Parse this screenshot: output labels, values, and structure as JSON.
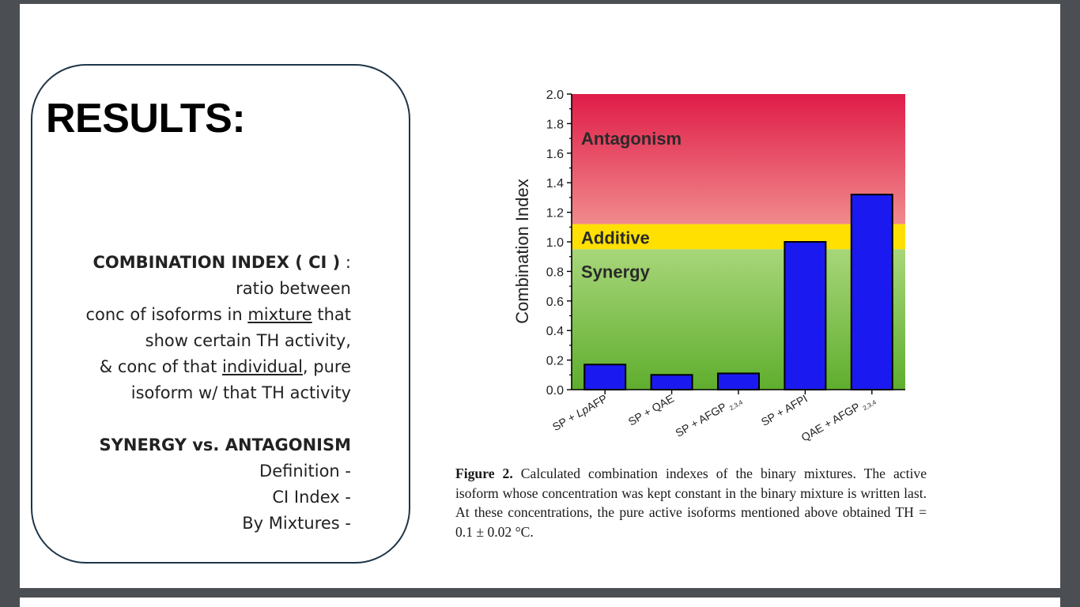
{
  "slide": {
    "title": "RESULTS:",
    "body": {
      "ci_heading": "COMBINATION INDEX ( CI )",
      "ci_colon": " :",
      "line_ratio": "ratio between",
      "line_conc_pre": "conc of isoforms in ",
      "line_conc_u": "mixture",
      "line_conc_post": " that",
      "line_show": "show certain TH activity,",
      "line_amp_pre": "& conc of that ",
      "line_amp_u": "individual",
      "line_amp_post": ", pure",
      "line_isoform": "isoform  w/ that TH activity",
      "syn_heading": "SYNERGY vs. ANTAGONISM",
      "item_definition": "Definition -",
      "item_ci_index": "CI Index -",
      "item_mixtures": "By Mixtures -"
    },
    "caption": {
      "label": "Figure 2.",
      "text": " Calculated combination indexes of the binary mixtures. The active isoform whose concentration was kept constant in the binary mixture is written last. At these concentrations, the pure active isoforms mentioned above obtained TH = 0.1 ± 0.02 °C."
    }
  },
  "chart_data": {
    "type": "bar",
    "ylabel": "Combination Index",
    "ylim": [
      0,
      2.0
    ],
    "yticks": [
      "0.0",
      "0.2",
      "0.4",
      "0.6",
      "0.8",
      "1.0",
      "1.2",
      "1.4",
      "1.6",
      "1.8",
      "2.0"
    ],
    "categories": [
      {
        "label": "SP + ",
        "italic": "Lp",
        "rest": "AFP",
        "sub": ""
      },
      {
        "label": "SP + QAE",
        "italic": "",
        "rest": "",
        "sub": ""
      },
      {
        "label": "SP + AFGP",
        "italic": "",
        "rest": "",
        "sub": "2,3,4"
      },
      {
        "label": "SP + AFPI",
        "italic": "",
        "rest": "",
        "sub": ""
      },
      {
        "label": "QAE + AFGP",
        "italic": "",
        "rest": "",
        "sub": "2,3,4"
      }
    ],
    "values": [
      0.17,
      0.1,
      0.11,
      1.0,
      1.32
    ],
    "regions": [
      {
        "label": "Antagonism",
        "from": 1.12,
        "to": 2.0
      },
      {
        "label": "Additive",
        "from": 0.95,
        "to": 1.12
      },
      {
        "label": "Synergy",
        "from": 0.0,
        "to": 0.95
      }
    ],
    "colors": {
      "bar": "#1a1af0",
      "antagonism_top": "#e01c48",
      "antagonism_bottom": "#f08a8c",
      "additive": "#ffe000",
      "synergy_top": "#a8d67a",
      "synergy_bottom": "#5fae2e"
    }
  }
}
